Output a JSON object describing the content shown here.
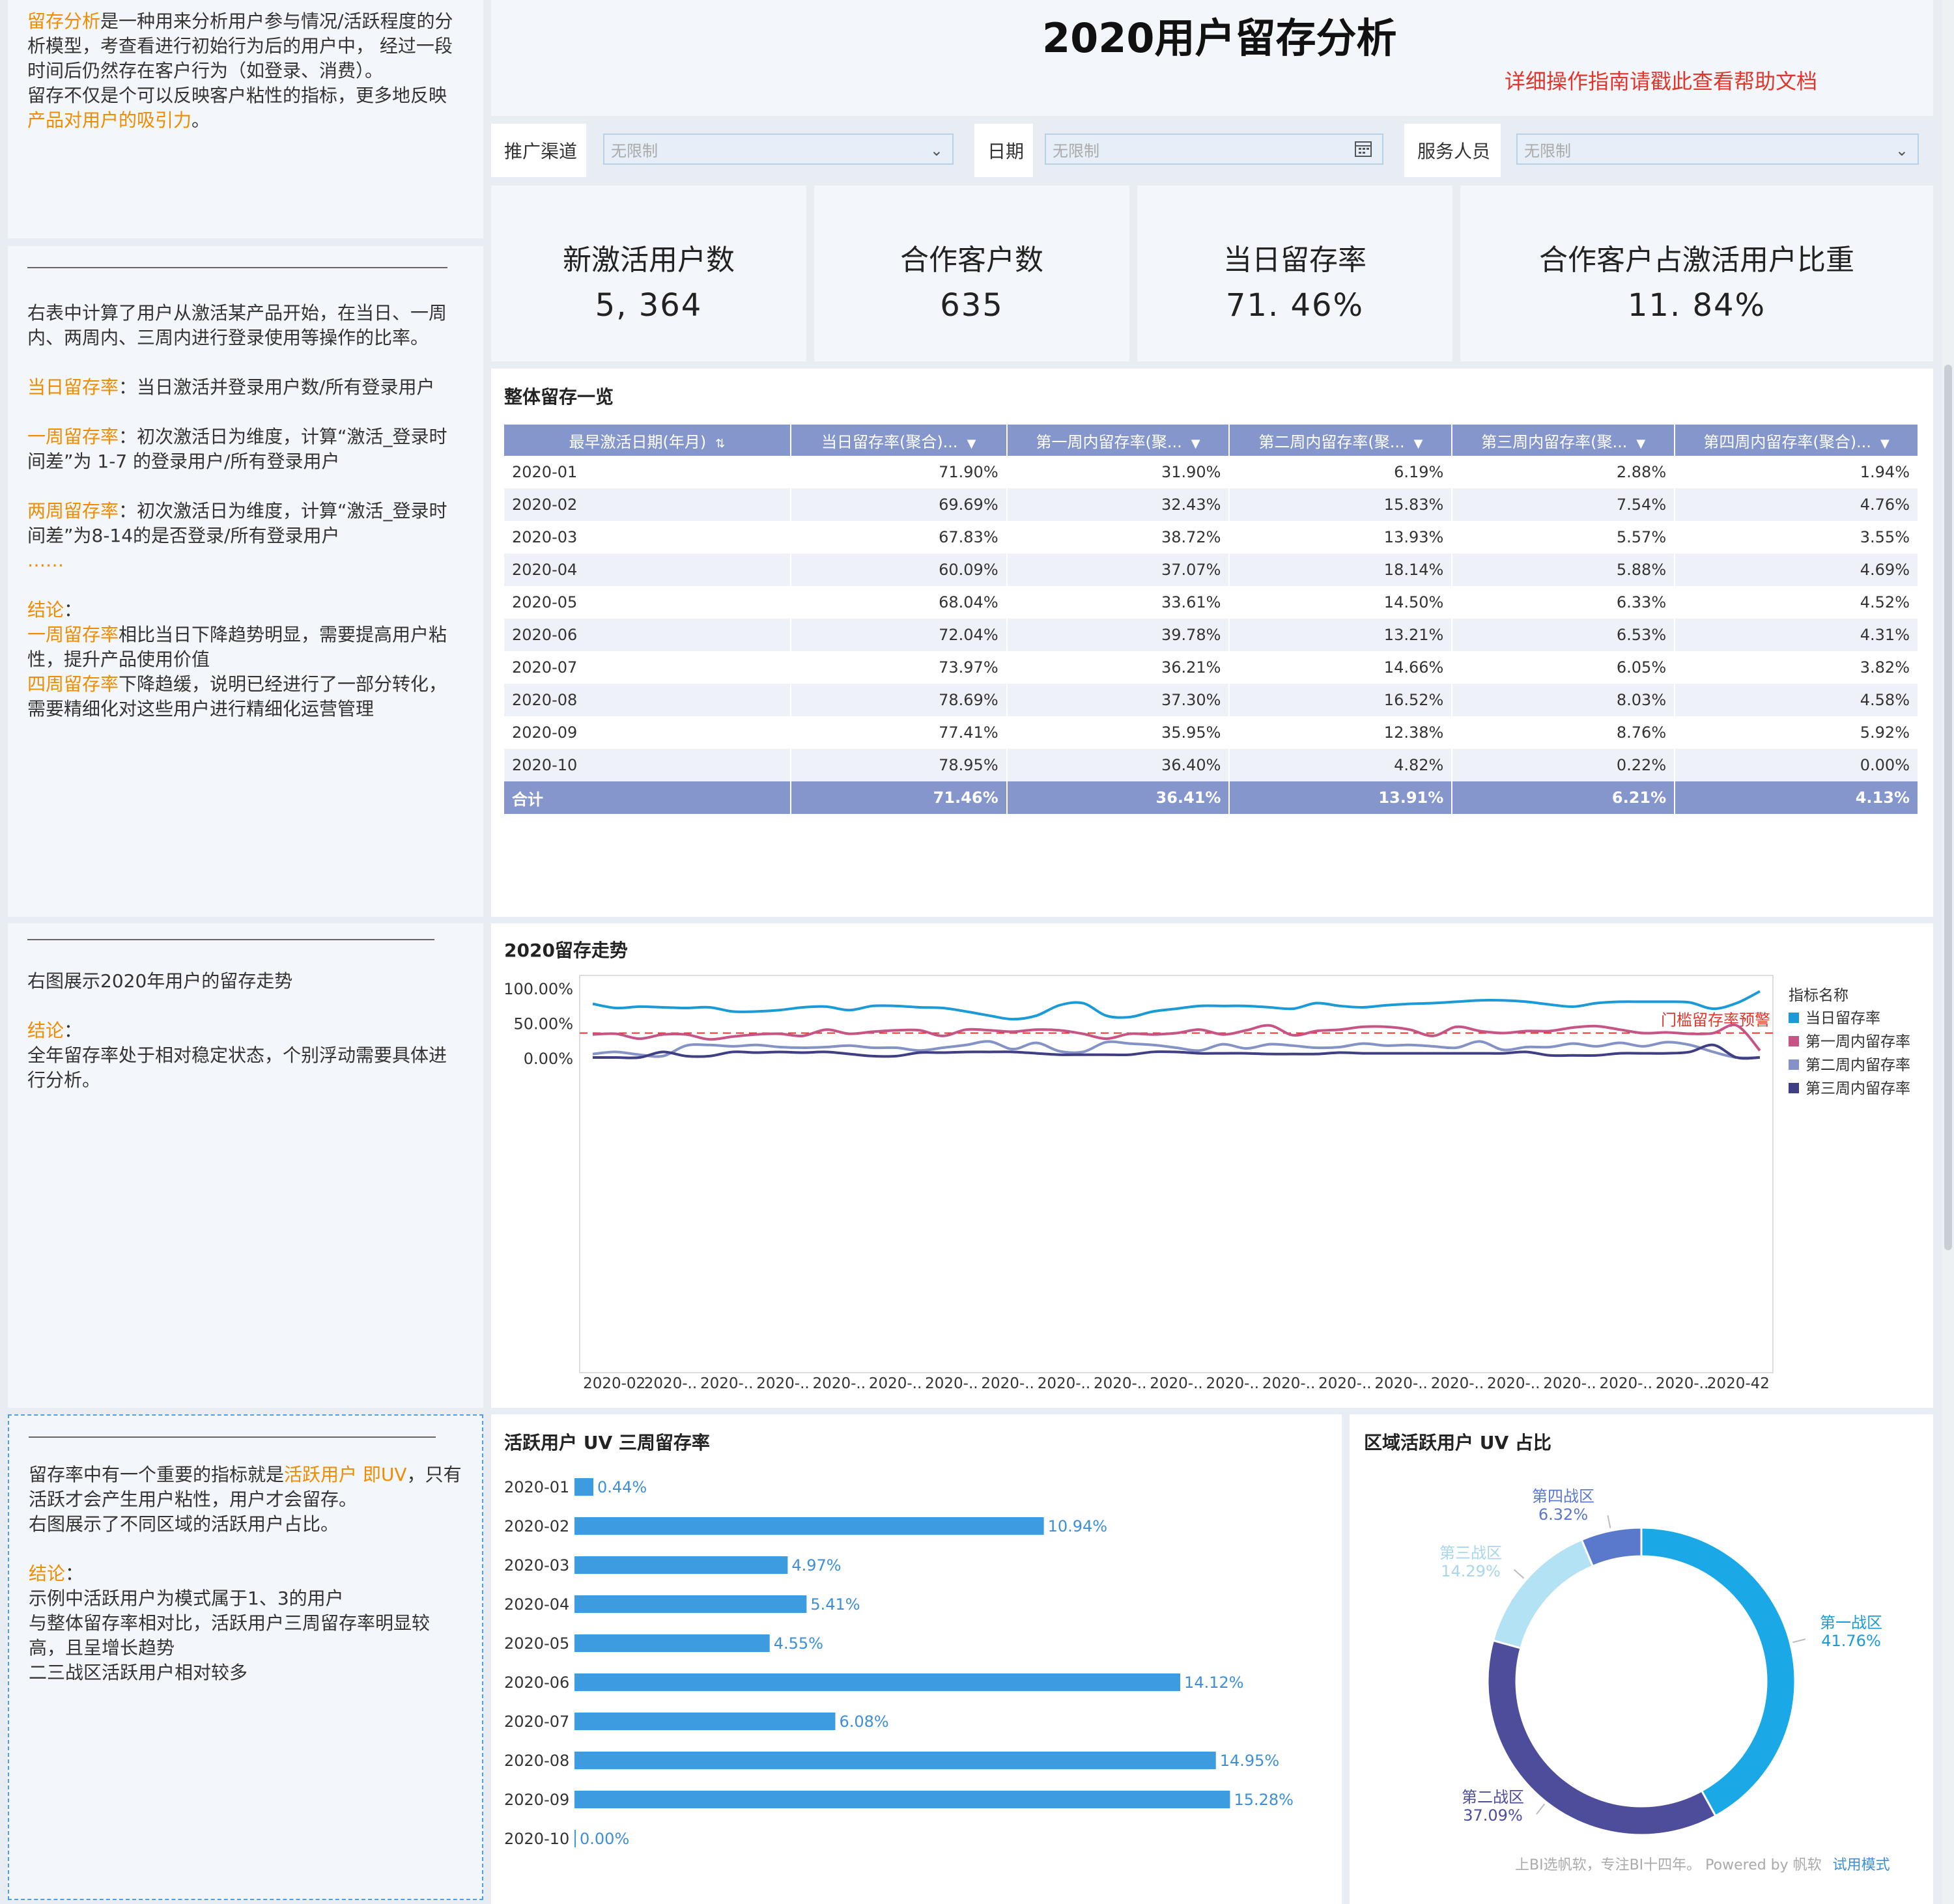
{
  "page": {
    "title": "2020用户留存分析",
    "help_link": "详细操作指南请戳此查看帮助文档"
  },
  "left": {
    "intro": [
      [
        {
          "t": "留存分析",
          "hl": true
        },
        {
          "t": "是一种用来分析用户参与情况/活跃程度的分析模型，考查看进行初始行为后的用户中， 经过一段时间后仍然存在客户行为（如登录、消费）。",
          "hl": false
        }
      ],
      [
        {
          "t": "留存不仅是个可以反映客户粘性的指标，更多地反映",
          "hl": false
        },
        {
          "t": "产品对用户的吸引力",
          "hl": true
        },
        {
          "t": "。",
          "hl": false
        }
      ]
    ],
    "table_notes": [
      [
        {
          "t": "右表中计算了用户从激活某产品开始，在当日、一周内、两周内、三周内进行登录使用等操作的比率。",
          "hl": false
        }
      ],
      [],
      [
        {
          "t": "当日留存率",
          "hl": true
        },
        {
          "t": "：当日激活并登录用户数/所有登录用户",
          "hl": false
        }
      ],
      [],
      [
        {
          "t": "一周留存率",
          "hl": true
        },
        {
          "t": "：初次激活日为维度，计算“激活_登录时间差”为 1-7 的登录用户/所有登录用户",
          "hl": false
        }
      ],
      [],
      [
        {
          "t": "两周留存率",
          "hl": true
        },
        {
          "t": "：初次激活日为维度，计算“激活_登录时间差”为8-14的是否登录/所有登录用户",
          "hl": false
        }
      ],
      [
        {
          "t": "……",
          "hl": true
        }
      ],
      [],
      [
        {
          "t": "结论",
          "hl": true
        },
        {
          "t": "：",
          "hl": false
        }
      ],
      [
        {
          "t": "一周留存率",
          "hl": true
        },
        {
          "t": "相比当日下降趋势明显，需要提高用户粘性，提升产品使用价值",
          "hl": false
        }
      ],
      [
        {
          "t": "四周留存率",
          "hl": true
        },
        {
          "t": "下降趋缓，说明已经进行了一部分转化，需要精细化对这些用户进行精细化运营管理",
          "hl": false
        }
      ]
    ],
    "trend_notes": [
      [
        {
          "t": "右图展示2020年用户的留存走势",
          "hl": false
        }
      ],
      [],
      [
        {
          "t": "结论",
          "hl": true
        },
        {
          "t": "：",
          "hl": false
        }
      ],
      [
        {
          "t": "全年留存率处于相对稳定状态，个别浮动需要具体进行分析。",
          "hl": false
        }
      ]
    ],
    "uv_notes": [
      [
        {
          "t": "留存率中有一个重要的指标就是",
          "hl": false
        },
        {
          "t": "活跃用户 即UV",
          "hl": true
        },
        {
          "t": "，只有活跃才会产生用户粘性，用户才会留存。",
          "hl": false
        }
      ],
      [
        {
          "t": "右图展示了不同区域的活跃用户占比。",
          "hl": false
        }
      ],
      [],
      [
        {
          "t": "结论",
          "hl": true
        },
        {
          "t": "：",
          "hl": false
        }
      ],
      [
        {
          "t": "示例中活跃用户为模式属于1、3的用户",
          "hl": false
        }
      ],
      [
        {
          "t": "与整体留存率相对比，活跃用户三周留存率明显较高，且呈增长趋势",
          "hl": false
        }
      ],
      [
        {
          "t": "二三战区活跃用户相对较多",
          "hl": false
        }
      ]
    ]
  },
  "filters": {
    "channel": {
      "label": "推广渠道",
      "value": "无限制"
    },
    "date": {
      "label": "日期",
      "value": "无限制"
    },
    "staff": {
      "label": "服务人员",
      "value": "无限制"
    }
  },
  "kpis": [
    {
      "title": "新激活用户数",
      "value": "5, 364"
    },
    {
      "title": "合作客户数",
      "value": "635"
    },
    {
      "title": "当日留存率",
      "value": "71. 46%"
    },
    {
      "title": "合作客户占激活用户比重",
      "value": "11. 84%"
    }
  ],
  "retention_table": {
    "title": "整体留存一览",
    "headers": [
      "最早激活日期(年月)",
      "当日留存率(聚合)...",
      "第一周内留存率(聚...",
      "第二周内留存率(聚...",
      "第三周内留存率(聚...",
      "第四周内留存率(聚合)..."
    ],
    "rows": [
      [
        "2020-01",
        "71.90%",
        "31.90%",
        "6.19%",
        "2.88%",
        "1.94%"
      ],
      [
        "2020-02",
        "69.69%",
        "32.43%",
        "15.83%",
        "7.54%",
        "4.76%"
      ],
      [
        "2020-03",
        "67.83%",
        "38.72%",
        "13.93%",
        "5.57%",
        "3.55%"
      ],
      [
        "2020-04",
        "60.09%",
        "37.07%",
        "18.14%",
        "5.88%",
        "4.69%"
      ],
      [
        "2020-05",
        "68.04%",
        "33.61%",
        "14.50%",
        "6.33%",
        "4.52%"
      ],
      [
        "2020-06",
        "72.04%",
        "39.78%",
        "13.21%",
        "6.53%",
        "4.31%"
      ],
      [
        "2020-07",
        "73.97%",
        "36.21%",
        "14.66%",
        "6.05%",
        "3.82%"
      ],
      [
        "2020-08",
        "78.69%",
        "37.30%",
        "16.52%",
        "8.03%",
        "4.58%"
      ],
      [
        "2020-09",
        "77.41%",
        "35.95%",
        "12.38%",
        "8.76%",
        "5.92%"
      ],
      [
        "2020-10",
        "78.95%",
        "36.40%",
        "4.82%",
        "0.22%",
        "0.00%"
      ]
    ],
    "total": [
      "合计",
      "71.46%",
      "36.41%",
      "13.91%",
      "6.21%",
      "4.13%"
    ]
  },
  "chart_data": [
    {
      "type": "line",
      "title": "2020留存走势",
      "legend_title": "指标名称",
      "legend_position": "right",
      "y_ticks": [
        "100.00%",
        "50.00%",
        "0.00%"
      ],
      "ylim": [
        0,
        100
      ],
      "x_tick_labels": [
        "2020-02",
        "2020-..",
        "2020-..",
        "2020-..",
        "2020-..",
        "2020-..",
        "2020-..",
        "2020-..",
        "2020-..",
        "2020-..",
        "2020-..",
        "2020-..",
        "2020-..",
        "2020-..",
        "2020-..",
        "2020-..",
        "2020-..",
        "2020-..",
        "2020-..",
        "2020-..",
        "2020-42"
      ],
      "threshold": {
        "value": 35,
        "label": "门槛留存率预警",
        "color": "#e0362c"
      },
      "series": [
        {
          "name": "当日留存率",
          "color": "#1a9bd7",
          "values": [
            77,
            71,
            73,
            72,
            71,
            72,
            66,
            66,
            68,
            72,
            73,
            68,
            74,
            74,
            72,
            71,
            66,
            60,
            55,
            60,
            75,
            78,
            60,
            58,
            66,
            70,
            74,
            74,
            74,
            72,
            70,
            78,
            74,
            72,
            75,
            77,
            78,
            80,
            82,
            82,
            80,
            76,
            73,
            78,
            80,
            80,
            80,
            79,
            70,
            78,
            95
          ]
        },
        {
          "name": "第一周内留存率",
          "color": "#c65585",
          "values": [
            33,
            34,
            27,
            33,
            33,
            26,
            30,
            33,
            34,
            31,
            40,
            34,
            37,
            39,
            39,
            31,
            40,
            39,
            37,
            40,
            39,
            34,
            27,
            34,
            33,
            35,
            40,
            33,
            39,
            46,
            32,
            38,
            40,
            44,
            44,
            40,
            31,
            44,
            38,
            35,
            38,
            38,
            43,
            45,
            40,
            35,
            36,
            34,
            35,
            46,
            10
          ]
        },
        {
          "name": "第二周内留存率",
          "color": "#8592c6",
          "values": [
            5,
            8,
            4,
            2,
            17,
            18,
            16,
            18,
            15,
            14,
            15,
            17,
            14,
            14,
            10,
            14,
            18,
            23,
            12,
            21,
            9,
            8,
            22,
            20,
            18,
            14,
            10,
            19,
            13,
            19,
            17,
            14,
            15,
            20,
            17,
            18,
            16,
            14,
            23,
            11,
            15,
            15,
            20,
            16,
            21,
            16,
            22,
            18,
            8,
            0,
            0
          ]
        },
        {
          "name": "第三周内留存率",
          "color": "#413f84",
          "values": [
            0,
            0,
            0,
            8,
            2,
            2,
            8,
            7,
            8,
            7,
            8,
            5,
            2,
            2,
            7,
            7,
            8,
            8,
            8,
            6,
            4,
            4,
            4,
            4,
            8,
            8,
            6,
            6,
            6,
            5,
            5,
            5,
            7,
            6,
            6,
            6,
            6,
            6,
            6,
            6,
            8,
            3,
            3,
            3,
            6,
            6,
            6,
            8,
            18,
            0,
            0
          ]
        }
      ]
    },
    {
      "type": "bar",
      "title": "活跃用户 UV 三周留存率",
      "orientation": "horizontal",
      "color": "#3d9ce0",
      "categories": [
        "2020-01",
        "2020-02",
        "2020-03",
        "2020-04",
        "2020-05",
        "2020-06",
        "2020-07",
        "2020-08",
        "2020-09",
        "2020-10"
      ],
      "values": [
        0.44,
        10.94,
        4.97,
        5.41,
        4.55,
        14.12,
        6.08,
        14.95,
        15.28,
        0.0
      ],
      "labels": [
        "0.44%",
        "10.94%",
        "4.97%",
        "5.41%",
        "4.55%",
        "14.12%",
        "6.08%",
        "14.95%",
        "15.28%",
        "0.00%"
      ]
    },
    {
      "type": "pie",
      "title": "区域活跃用户 UV 占比",
      "donut": true,
      "slices": [
        {
          "name": "第一战区",
          "value": 41.76,
          "label": "41.76%",
          "color": "#1aa9e6",
          "label_color": "#1a9bd7"
        },
        {
          "name": "第二战区",
          "value": 37.09,
          "label": "37.09%",
          "color": "#4d4d9c",
          "label_color": "#4d4d9c"
        },
        {
          "name": "第三战区",
          "value": 14.29,
          "label": "14.29%",
          "color": "#b3e2f4",
          "label_color": "#a8d6ec"
        },
        {
          "name": "第四战区",
          "value": 6.32,
          "label": "6.32%",
          "color": "#5a78cc",
          "label_color": "#5a78cc"
        }
      ]
    }
  ],
  "footer": {
    "powered": "上BI选帆软，专注BI十四年。 Powered by 帆软",
    "trial": "试用模式"
  }
}
